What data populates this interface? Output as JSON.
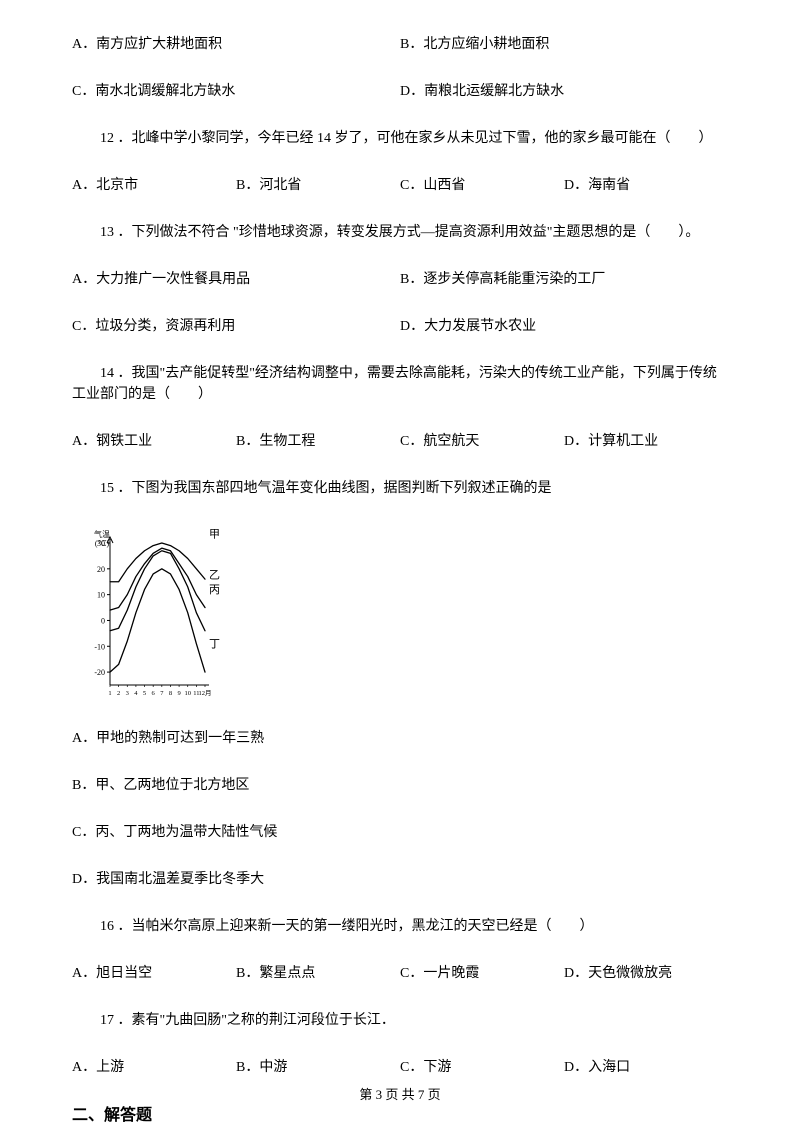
{
  "q11_opts": {
    "A": "A．南方应扩大耕地面积",
    "B": "B．北方应缩小耕地面积",
    "C": "C．南水北调缓解北方缺水",
    "D": "D．南粮北运缓解北方缺水"
  },
  "q12": {
    "text": "12 ．北峰中学小黎同学，今年已经 14 岁了，可他在家乡从未见过下雪，他的家乡最可能在（　　）",
    "opts": {
      "A": "A．北京市",
      "B": "B．河北省",
      "C": "C．山西省",
      "D": "D．海南省"
    }
  },
  "q13": {
    "text": "13 ．下列做法不符合 \"珍惜地球资源，转变发展方式—提高资源利用效益\"主题思想的是（　　）。",
    "opts": {
      "A": "A．大力推广一次性餐具用品",
      "B": "B．逐步关停高耗能重污染的工厂",
      "C": "C．垃圾分类，资源再利用",
      "D": "D．大力发展节水农业"
    }
  },
  "q14": {
    "text": "14 ．我国\"去产能促转型\"经济结构调整中，需要去除高能耗，污染大的传统工业产能，下列属于传统工业部门的是（　　）",
    "opts": {
      "A": "A．钢铁工业",
      "B": "B．生物工程",
      "C": "C．航空航天",
      "D": "D．计算机工业"
    }
  },
  "q15": {
    "text": "15 ．下图为我国东部四地气温年变化曲线图，据图判断下列叙述正确的是",
    "opts": {
      "A": "A．甲地的熟制可达到一年三熟",
      "B": "B．甲、乙两地位于北方地区",
      "C": "C．丙、丁两地为温带大陆性气候",
      "D": "D．我国南北温差夏季比冬季大"
    }
  },
  "q16": {
    "text": "16 ．当帕米尔高原上迎来新一天的第一缕阳光时，黑龙江的天空已经是（　　）",
    "opts": {
      "A": "A．旭日当空",
      "B": "B．繁星点点",
      "C": "C．一片晚霞",
      "D": "D．天色微微放亮"
    }
  },
  "q17": {
    "text": "17 ．素有\"九曲回肠\"之称的荆江河段位于长江．",
    "opts": {
      "A": "A．上游",
      "B": "B．中游",
      "C": "C．下游",
      "D": "D．入海口"
    }
  },
  "section2": "二、解答题",
  "footer": "第 3 页 共 7 页",
  "chart": {
    "type": "line",
    "width": 145,
    "height": 178,
    "background": "#ffffff",
    "axis_color": "#000000",
    "line_color": "#000000",
    "line_width": 1.3,
    "y_label": "气温(℃)",
    "y_ticks": [
      -20,
      -10,
      0,
      10,
      20,
      30
    ],
    "x_ticks": [
      "1",
      "2",
      "3",
      "4",
      "5",
      "6",
      "7",
      "8",
      "9",
      "10",
      "11",
      "12月"
    ],
    "series_labels": {
      "jia": "甲",
      "yi": "乙",
      "bing": "丙",
      "ding": "丁"
    },
    "label_fontsize": 10,
    "y_range": [
      -25,
      30
    ],
    "series": {
      "jia": [
        15,
        15,
        20,
        24,
        27,
        29,
        30,
        29,
        27,
        24,
        20,
        16
      ],
      "yi": [
        4,
        5,
        10,
        17,
        22,
        26,
        28,
        27,
        22,
        17,
        10,
        5
      ],
      "bing": [
        -4,
        -3,
        4,
        13,
        20,
        25,
        27,
        26,
        20,
        13,
        3,
        -4
      ],
      "ding": [
        -20,
        -17,
        -8,
        3,
        12,
        18,
        20,
        18,
        12,
        3,
        -9,
        -20
      ]
    }
  }
}
